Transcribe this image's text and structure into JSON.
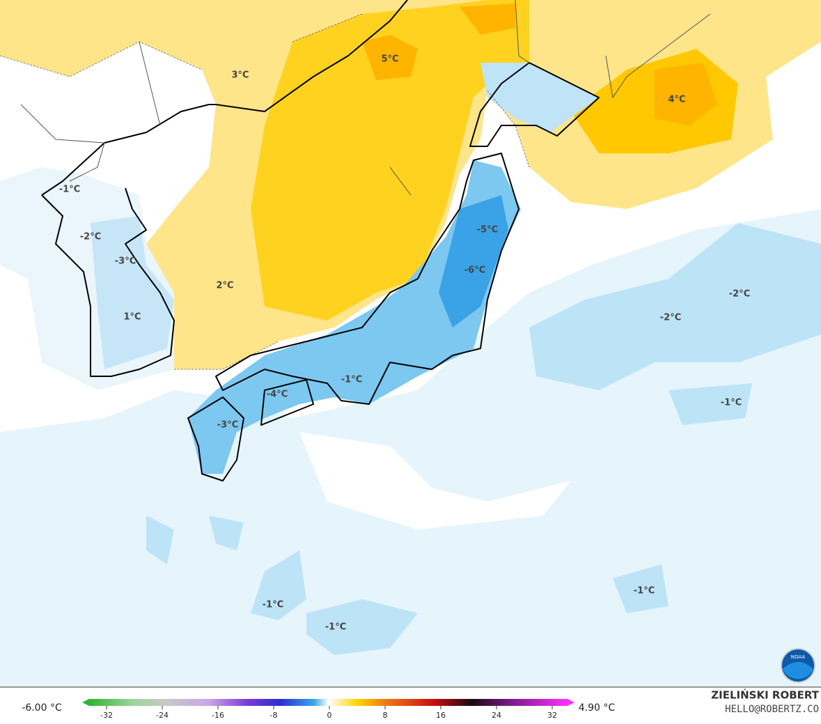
{
  "map": {
    "labels": [
      "3°C",
      "5°C",
      "4°C",
      "-1°C",
      "-2°C",
      "-3°C",
      "2°C",
      "1°C",
      "-5°C",
      "-6°C",
      "-2°C",
      "-2°C",
      "-1°C",
      "-4°C",
      "-3°C",
      "-1°C",
      "-1°C",
      "-1°C",
      "-1°C"
    ],
    "colorbar": {
      "min_label": "-6.00 °C",
      "max_label": "4.90 °C",
      "ticks": [
        -32,
        -24,
        -16,
        -8,
        0,
        8,
        16,
        24,
        32
      ]
    },
    "credit": {
      "author": "ZIELIŃSKI ROBERT",
      "email": "HELLO@ROBERTZ.CO",
      "logo": "NOAA"
    }
  }
}
